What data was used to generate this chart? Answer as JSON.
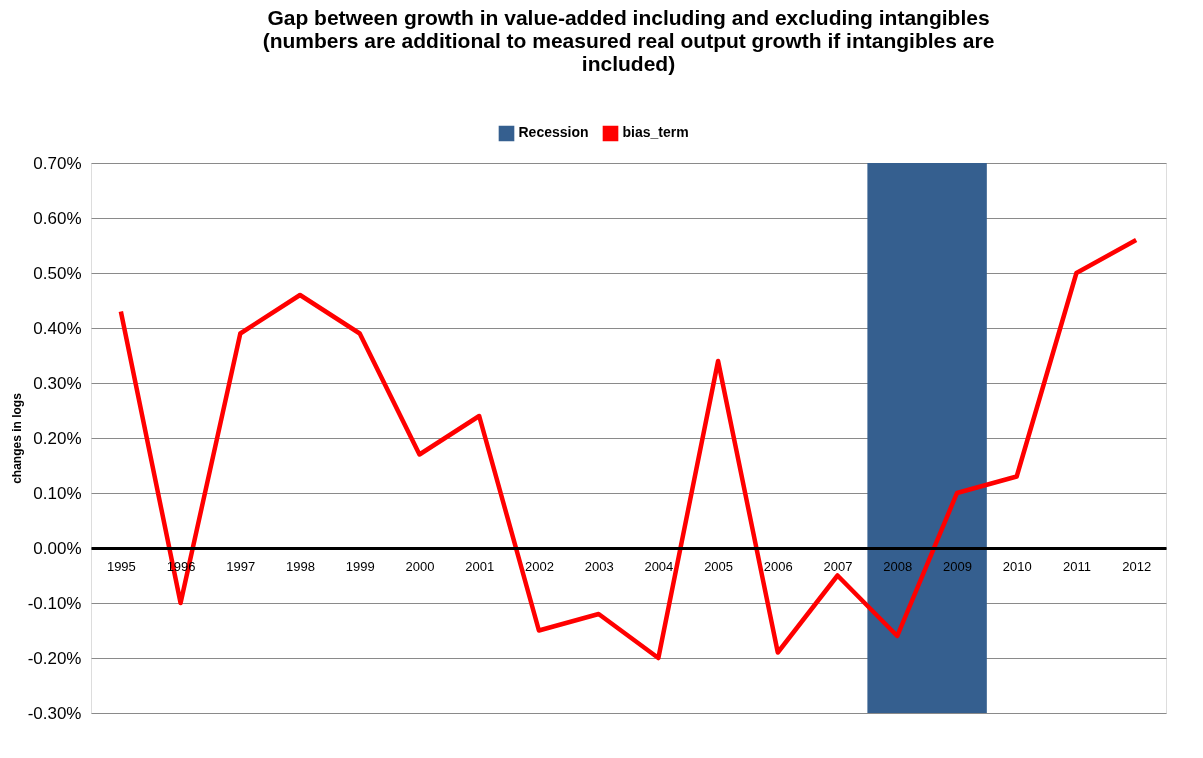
{
  "chart_data": {
    "type": "line",
    "title": "Gap between growth in value-added including and excluding intangibles (numbers are additional to measured real output growth if intangibles are included)",
    "ylabel": "changes in logs",
    "categories": [
      "1995",
      "1996",
      "1997",
      "1998",
      "1999",
      "2000",
      "2001",
      "2002",
      "2003",
      "2004",
      "2005",
      "2006",
      "2007",
      "2008",
      "2009",
      "2010",
      "2011",
      "2012"
    ],
    "series": [
      {
        "name": "bias_term",
        "color": "#ff0000",
        "values": [
          0.43,
          -0.1,
          0.39,
          0.46,
          0.39,
          0.17,
          0.24,
          -0.15,
          -0.12,
          -0.2,
          0.34,
          -0.19,
          -0.05,
          -0.16,
          0.1,
          0.13,
          0.5,
          0.56
        ]
      }
    ],
    "bands": [
      {
        "axis": "x",
        "from": "2008",
        "to": "2009",
        "label": "Recession",
        "color": "#355f8f"
      }
    ],
    "ylim": [
      -0.3,
      0.7
    ],
    "yticks": [
      {
        "value": -0.3,
        "label": "-0.30%"
      },
      {
        "value": -0.2,
        "label": "-0.20%"
      },
      {
        "value": -0.1,
        "label": "-0.10%"
      },
      {
        "value": 0,
        "label": "0.00%"
      },
      {
        "value": 0.1,
        "label": "0.10%"
      },
      {
        "value": 0.2,
        "label": "0.20%"
      },
      {
        "value": 0.3,
        "label": "0.30%"
      },
      {
        "value": 0.4,
        "label": "0.40%"
      },
      {
        "value": 0.5,
        "label": "0.50%"
      },
      {
        "value": 0.6,
        "label": "0.60%"
      },
      {
        "value": 0.7,
        "label": "0.70%"
      }
    ],
    "grid": "y",
    "legend": "top",
    "marker": "none",
    "line_style": "solid"
  }
}
